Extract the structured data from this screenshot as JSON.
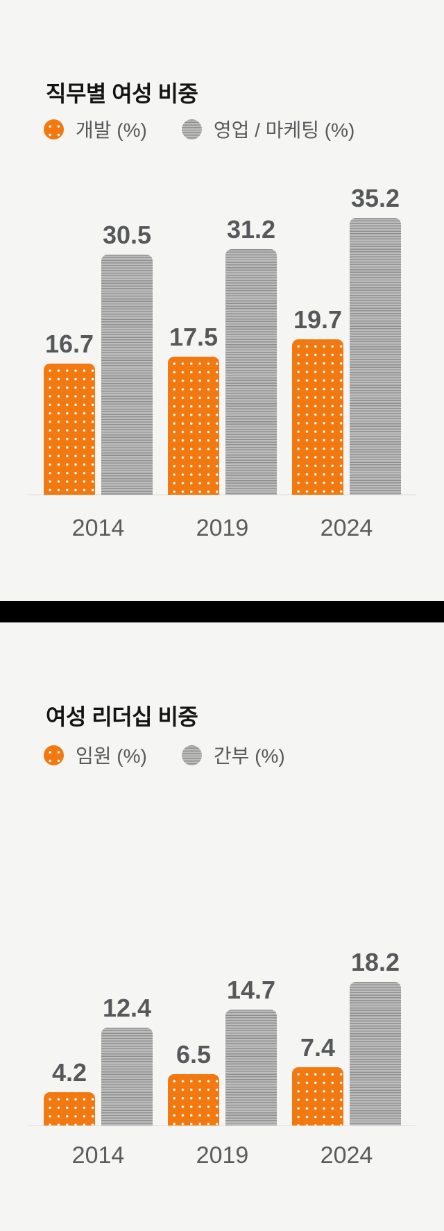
{
  "page": {
    "background_color": "#f5f5f4",
    "divider_color": "#000000"
  },
  "colors": {
    "orange_series": "#f1790f",
    "gray_series_base": "#b7b7b7",
    "gray_series_stripe": "#8e8e8e",
    "title_text": "#141414",
    "label_text": "#57585a"
  },
  "charts": [
    {
      "title": "직무별 여성 비중",
      "legend": [
        {
          "label": "개발 (%)",
          "swatch": "orange-dotted"
        },
        {
          "label": "영업 / 마케팅 (%)",
          "swatch": "gray-striped"
        }
      ]
    },
    {
      "title": "여성 리더십 비중",
      "legend": [
        {
          "label": "임원 (%)",
          "swatch": "orange-dotted"
        },
        {
          "label": "간부 (%)",
          "swatch": "gray-striped"
        }
      ]
    }
  ],
  "chart_data": [
    {
      "type": "bar",
      "title": "직무별 여성 비중",
      "categories": [
        "2014",
        "2019",
        "2024"
      ],
      "series": [
        {
          "name": "개발 (%)",
          "color": "#f1790f",
          "pattern": "white-dots",
          "values": [
            16.7,
            17.5,
            19.7
          ]
        },
        {
          "name": "영업 / 마케팅 (%)",
          "color": "#b7b7b7",
          "pattern": "horizontal-stripes",
          "values": [
            30.5,
            31.2,
            35.2
          ]
        }
      ],
      "xlabel": "",
      "ylabel": "",
      "ylim": [
        0,
        36.5
      ],
      "grid": false,
      "value_labels": true,
      "legend_position": "top-left"
    },
    {
      "type": "bar",
      "title": "여성 리더십 비중",
      "categories": [
        "2014",
        "2019",
        "2024"
      ],
      "series": [
        {
          "name": "임원 (%)",
          "color": "#f1790f",
          "pattern": "white-dots",
          "values": [
            4.2,
            6.5,
            7.4
          ]
        },
        {
          "name": "간부 (%)",
          "color": "#b7b7b7",
          "pattern": "horizontal-stripes",
          "values": [
            12.4,
            14.7,
            18.2
          ]
        }
      ],
      "xlabel": "",
      "ylabel": "",
      "ylim": [
        0,
        36.5
      ],
      "grid": false,
      "value_labels": true,
      "legend_position": "top-left"
    }
  ]
}
